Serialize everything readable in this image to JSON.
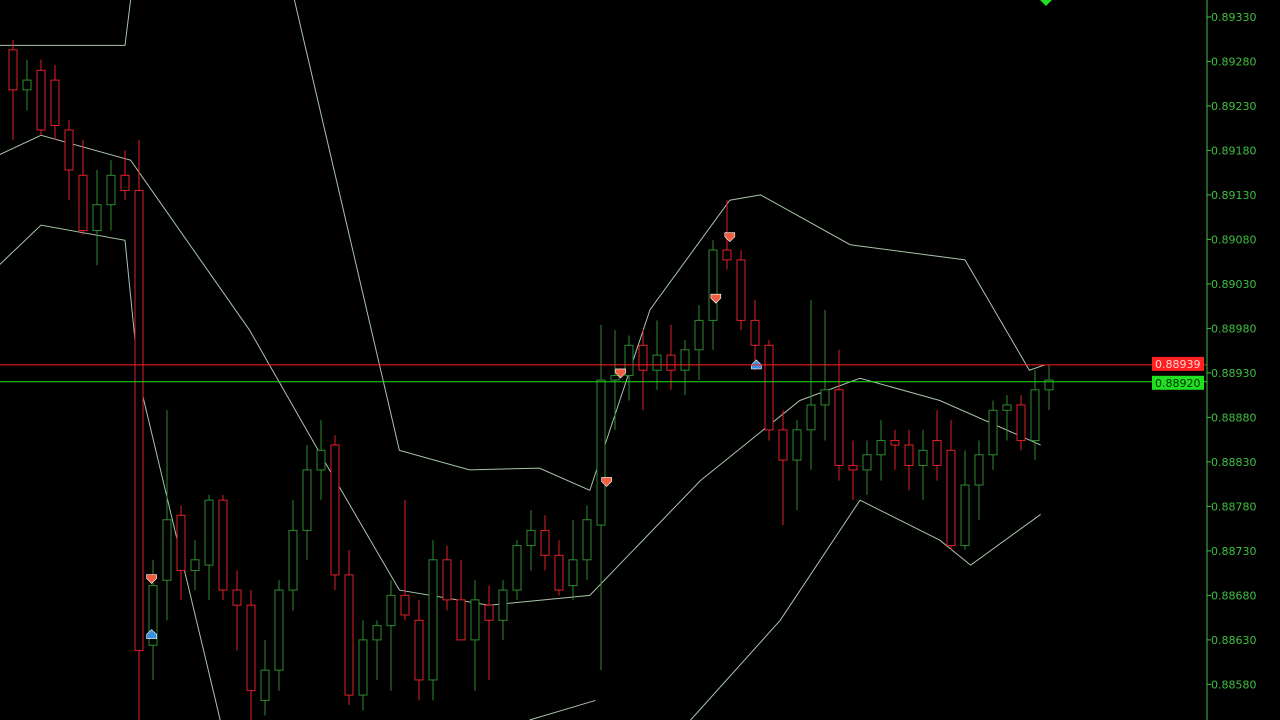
{
  "chart_data": {
    "type": "candlestick",
    "title": "",
    "xlabel": "",
    "ylabel": "",
    "ylim": [
      0.8854,
      0.89349
    ],
    "grid": false,
    "colors": {
      "background": "#000000",
      "bull": "#2f8a2f",
      "bear": "#e0202a",
      "bands": "#a8c4a8",
      "axis": "#3fbf3f"
    },
    "y_ticks": [
      "0.89330",
      "0.89280",
      "0.89230",
      "0.89180",
      "0.89130",
      "0.89080",
      "0.89030",
      "0.88980",
      "0.88930",
      "0.88880",
      "0.88830",
      "0.88780",
      "0.88730",
      "0.88680",
      "0.88630",
      "0.88580"
    ],
    "ohlc": [
      [
        0.89293,
        0.89304,
        0.89192,
        0.89248
      ],
      [
        0.89248,
        0.89282,
        0.89225,
        0.89259
      ],
      [
        0.8927,
        0.89282,
        0.89197,
        0.89203
      ],
      [
        0.89259,
        0.89276,
        0.89192,
        0.89208
      ],
      [
        0.89203,
        0.89214,
        0.89124,
        0.89158
      ],
      [
        0.89152,
        0.89192,
        0.89085,
        0.8909
      ],
      [
        0.8909,
        0.89158,
        0.89051,
        0.89119
      ],
      [
        0.89119,
        0.89169,
        0.8909,
        0.89152
      ],
      [
        0.89152,
        0.8918,
        0.89124,
        0.89135
      ],
      [
        0.89135,
        0.89192,
        0.8854,
        0.88618
      ],
      [
        0.88624,
        0.8872,
        0.88585,
        0.88691
      ],
      [
        0.88697,
        0.88888,
        0.88652,
        0.88765
      ],
      [
        0.8877,
        0.88781,
        0.88675,
        0.88708
      ],
      [
        0.88708,
        0.88742,
        0.88686,
        0.8872
      ],
      [
        0.88714,
        0.88793,
        0.88675,
        0.88787
      ],
      [
        0.88787,
        0.88793,
        0.88675,
        0.88686
      ],
      [
        0.88686,
        0.88708,
        0.88618,
        0.88669
      ],
      [
        0.88669,
        0.88686,
        0.8854,
        0.88573
      ],
      [
        0.88562,
        0.8863,
        0.88545,
        0.88596
      ],
      [
        0.88596,
        0.88697,
        0.88573,
        0.88686
      ],
      [
        0.88686,
        0.88787,
        0.88663,
        0.88753
      ],
      [
        0.88753,
        0.88849,
        0.8872,
        0.88821
      ],
      [
        0.88821,
        0.88877,
        0.88787,
        0.88843
      ],
      [
        0.88849,
        0.8886,
        0.88686,
        0.88703
      ],
      [
        0.88703,
        0.88731,
        0.88557,
        0.88568
      ],
      [
        0.88568,
        0.88652,
        0.88551,
        0.8863
      ],
      [
        0.8863,
        0.88652,
        0.88585,
        0.88646
      ],
      [
        0.88646,
        0.88697,
        0.88573,
        0.8868
      ],
      [
        0.8868,
        0.88787,
        0.88652,
        0.88658
      ],
      [
        0.88652,
        0.88675,
        0.88562,
        0.88585
      ],
      [
        0.88585,
        0.88742,
        0.88562,
        0.8872
      ],
      [
        0.8872,
        0.88736,
        0.88663,
        0.88675
      ],
      [
        0.88675,
        0.8872,
        0.8863,
        0.8863
      ],
      [
        0.8863,
        0.88697,
        0.88573,
        0.88675
      ],
      [
        0.88669,
        0.88691,
        0.88585,
        0.88652
      ],
      [
        0.88652,
        0.88697,
        0.8863,
        0.88686
      ],
      [
        0.88686,
        0.88742,
        0.88675,
        0.88736
      ],
      [
        0.88736,
        0.88776,
        0.88708,
        0.88753
      ],
      [
        0.88753,
        0.8877,
        0.88708,
        0.88725
      ],
      [
        0.88725,
        0.88742,
        0.8868,
        0.88686
      ],
      [
        0.88691,
        0.88765,
        0.88675,
        0.8872
      ],
      [
        0.8872,
        0.88781,
        0.88697,
        0.88765
      ],
      [
        0.88759,
        0.88984,
        0.88596,
        0.88922
      ],
      [
        0.88922,
        0.88978,
        0.88866,
        0.88927
      ],
      [
        0.88927,
        0.88972,
        0.88899,
        0.88961
      ],
      [
        0.88961,
        0.88978,
        0.88888,
        0.88933
      ],
      [
        0.88933,
        0.88989,
        0.88911,
        0.8895
      ],
      [
        0.8895,
        0.88984,
        0.88911,
        0.88933
      ],
      [
        0.88933,
        0.88967,
        0.88905,
        0.88956
      ],
      [
        0.88956,
        0.89006,
        0.88922,
        0.88989
      ],
      [
        0.88989,
        0.89079,
        0.88956,
        0.89068
      ],
      [
        0.89068,
        0.89124,
        0.89046,
        0.89057
      ],
      [
        0.89057,
        0.89068,
        0.88978,
        0.88989
      ],
      [
        0.88989,
        0.89012,
        0.88933,
        0.88961
      ],
      [
        0.88961,
        0.88967,
        0.88854,
        0.88866
      ],
      [
        0.88866,
        0.88888,
        0.88759,
        0.88832
      ],
      [
        0.88832,
        0.88877,
        0.88776,
        0.88866
      ],
      [
        0.88866,
        0.89012,
        0.88821,
        0.88894
      ],
      [
        0.88894,
        0.89001,
        0.88854,
        0.88911
      ],
      [
        0.88911,
        0.88956,
        0.88809,
        0.88826
      ],
      [
        0.88826,
        0.88854,
        0.88787,
        0.88821
      ],
      [
        0.88821,
        0.88854,
        0.88793,
        0.88838
      ],
      [
        0.88838,
        0.88877,
        0.88809,
        0.88854
      ],
      [
        0.88854,
        0.88866,
        0.88821,
        0.88849
      ],
      [
        0.88849,
        0.88866,
        0.88798,
        0.88826
      ],
      [
        0.88826,
        0.88866,
        0.88787,
        0.88843
      ],
      [
        0.88854,
        0.88888,
        0.88809,
        0.88826
      ],
      [
        0.88843,
        0.88877,
        0.88731,
        0.88736
      ],
      [
        0.88736,
        0.88843,
        0.88731,
        0.88804
      ],
      [
        0.88804,
        0.88854,
        0.88765,
        0.88838
      ],
      [
        0.88838,
        0.88899,
        0.88821,
        0.88888
      ],
      [
        0.88888,
        0.88905,
        0.88854,
        0.88894
      ],
      [
        0.88894,
        0.88905,
        0.88843,
        0.88854
      ],
      [
        0.88854,
        0.88933,
        0.88832,
        0.88911
      ],
      [
        0.88911,
        0.88939,
        0.88888,
        0.88922
      ]
    ],
    "bands": {
      "upper": [
        [
          [
            -1,
            0.89298
          ],
          [
            8,
            0.89298
          ],
          [
            8.4,
            0.89349
          ]
        ],
        [
          [
            20.1,
            0.89349
          ],
          [
            27.6,
            0.88843
          ],
          [
            32.6,
            0.88821
          ],
          [
            37.6,
            0.88823
          ],
          [
            41.2,
            0.88798
          ],
          [
            45.5,
            0.89001
          ],
          [
            51.2,
            0.89124
          ],
          [
            53.4,
            0.8913
          ],
          [
            59.8,
            0.89074
          ],
          [
            68,
            0.89057
          ],
          [
            72.6,
            0.88933
          ],
          [
            73.7,
            0.88939
          ]
        ]
      ],
      "middle": [
        [
          [
            -1,
            0.89175
          ],
          [
            2,
            0.89197
          ],
          [
            8.4,
            0.89169
          ],
          [
            16.9,
            0.88978
          ],
          [
            22.6,
            0.88821
          ],
          [
            27.6,
            0.88686
          ],
          [
            34,
            0.88669
          ],
          [
            41.2,
            0.8868
          ],
          [
            49.1,
            0.88809
          ],
          [
            56.2,
            0.88899
          ],
          [
            60.5,
            0.88924
          ],
          [
            66.2,
            0.88899
          ],
          [
            73.4,
            0.88849
          ]
        ]
      ],
      "lower": [
        [
          [
            -1,
            0.89051
          ],
          [
            2,
            0.89096
          ],
          [
            8,
            0.89079
          ],
          [
            9,
            0.88922
          ],
          [
            14.8,
            0.8854
          ]
        ],
        [
          [
            36.9,
            0.8854
          ],
          [
            41.6,
            0.88562
          ]
        ],
        [
          [
            48.4,
            0.8854
          ],
          [
            54.8,
            0.88652
          ],
          [
            60.5,
            0.88787
          ],
          [
            66.2,
            0.88742
          ],
          [
            68.4,
            0.88714
          ],
          [
            73.4,
            0.88771
          ]
        ]
      ]
    },
    "signals": [
      {
        "type": "sell",
        "index": 9.9,
        "price": 0.88699,
        "color": "#f06040"
      },
      {
        "type": "buy",
        "index": 9.9,
        "price": 0.88636,
        "color": "#3a8ee0"
      },
      {
        "type": "sell",
        "index": 42.4,
        "price": 0.88808,
        "color": "#f06040"
      },
      {
        "type": "sell",
        "index": 43.4,
        "price": 0.8893,
        "color": "#f06040"
      },
      {
        "type": "sell",
        "index": 50.2,
        "price": 0.89014,
        "color": "#f06040"
      },
      {
        "type": "sell",
        "index": 51.2,
        "price": 0.89083,
        "color": "#f06040"
      },
      {
        "type": "buy",
        "index": 53.1,
        "price": 0.88939,
        "color": "#3a8ee0"
      }
    ],
    "price_lines": [
      {
        "name": "ask",
        "price": 0.88939,
        "label": "0.88939",
        "color": "#ff2020"
      },
      {
        "name": "bid",
        "price": 0.8892,
        "label": "0.88920",
        "color": "#20e020"
      }
    ]
  }
}
